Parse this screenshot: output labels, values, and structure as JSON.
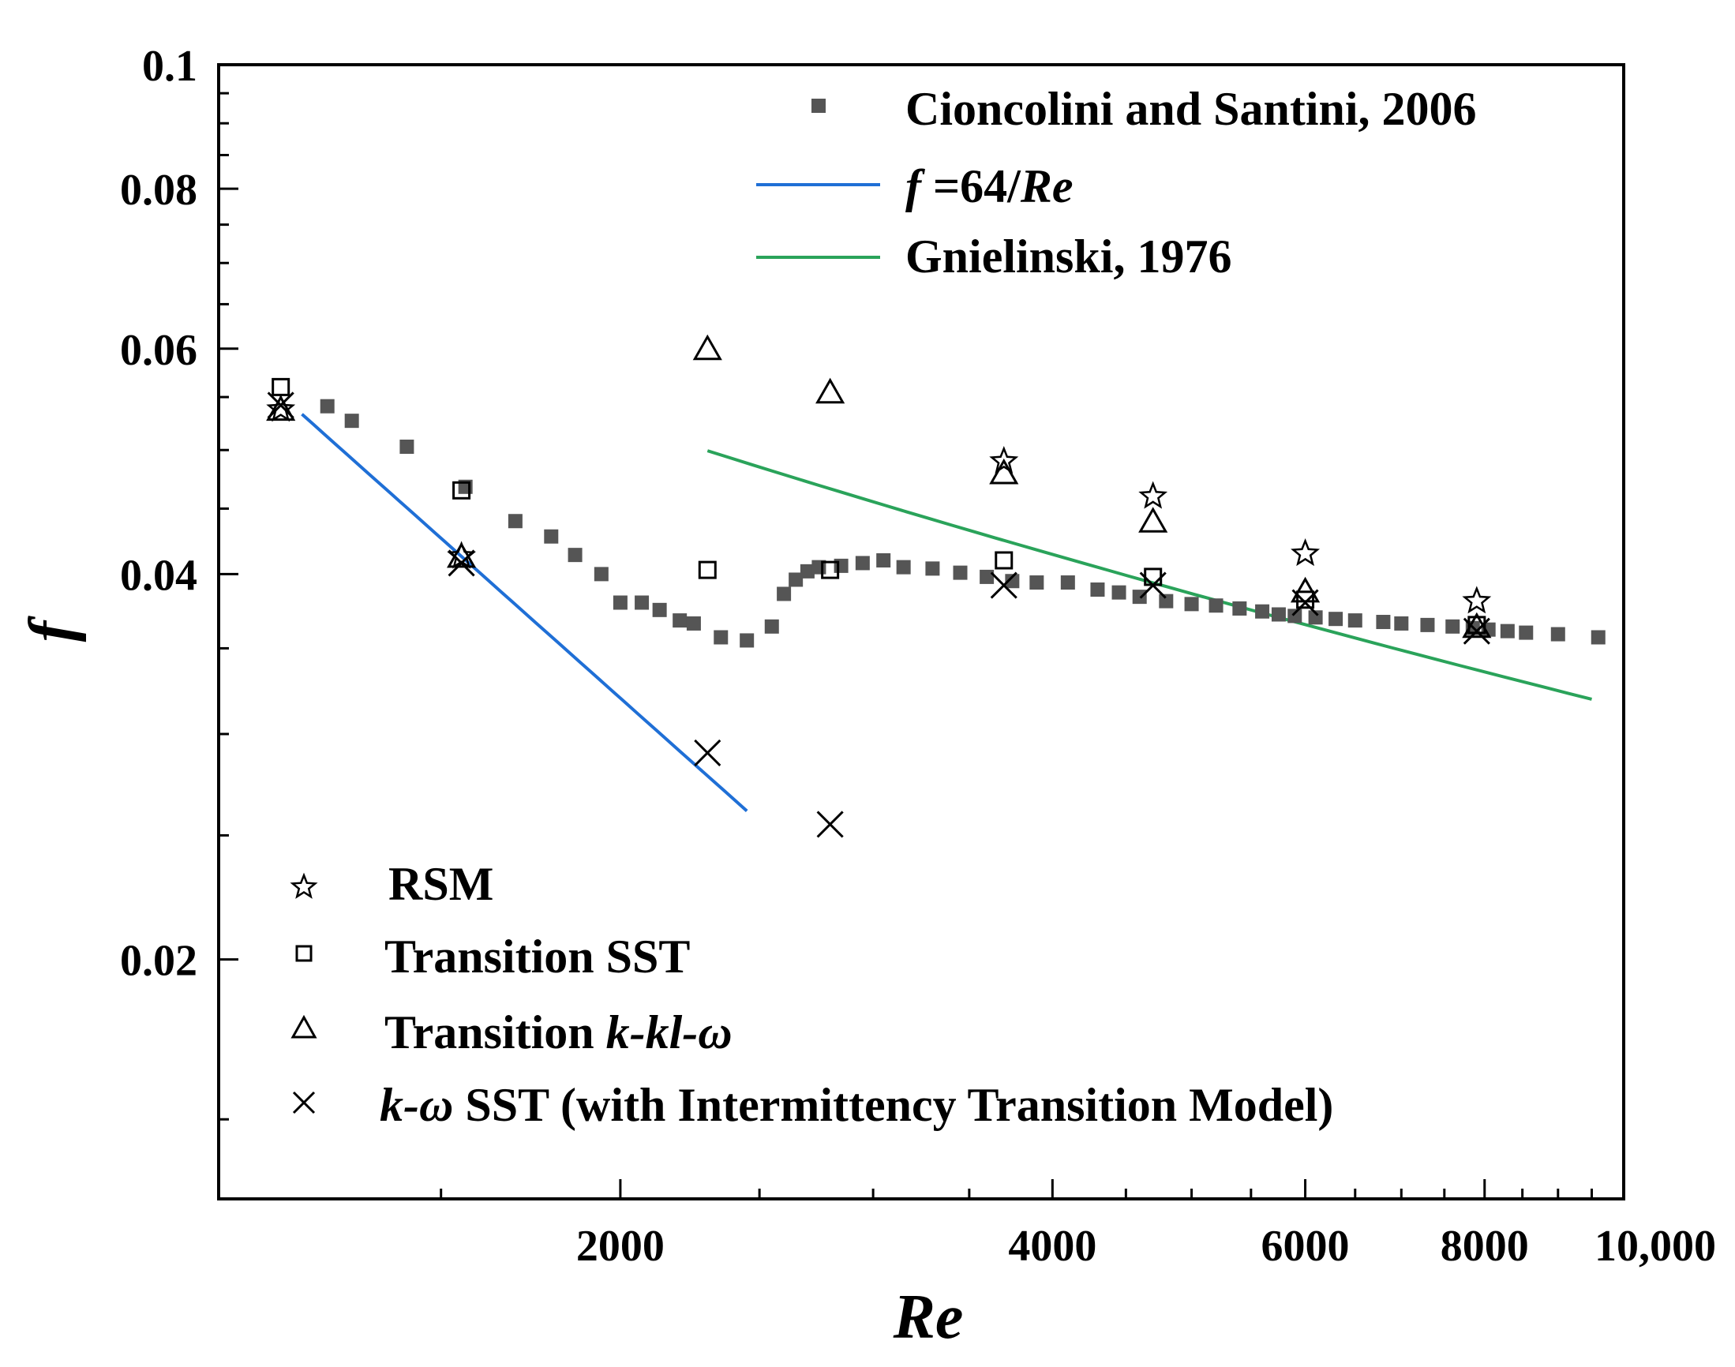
{
  "chart_data": {
    "type": "scatter",
    "x_scale": "log",
    "y_scale": "log",
    "xlabel": "Re",
    "ylabel": "f",
    "xlim": [
      1050,
      10000
    ],
    "ylim": [
      0.013,
      0.1
    ],
    "x_ticks": [
      {
        "value": 2000,
        "label": "2000"
      },
      {
        "value": 4000,
        "label": "4000"
      },
      {
        "value": 6000,
        "label": "6000"
      },
      {
        "value": 8000,
        "label": "8000"
      },
      {
        "value": 10000,
        "label": "10,000"
      }
    ],
    "y_ticks": [
      {
        "value": 0.02,
        "label": "0.02"
      },
      {
        "value": 0.04,
        "label": "0.04"
      },
      {
        "value": 0.06,
        "label": "0.06"
      },
      {
        "value": 0.08,
        "label": "0.08"
      },
      {
        "value": 0.1,
        "label": "0.1"
      }
    ],
    "x_minor_ticks": [
      1000,
      1500,
      2500,
      3000,
      3500,
      4500,
      5000,
      5500,
      6500,
      7000,
      7500,
      8500,
      9000,
      9500
    ],
    "y_minor_ticks": [
      0.015,
      0.025,
      0.03,
      0.035,
      0.045,
      0.05,
      0.055,
      0.065,
      0.07,
      0.075,
      0.085,
      0.09,
      0.095
    ],
    "lines": [
      {
        "name": "f=64/Re",
        "color": "#1f6fd6",
        "x_range": [
          1200,
          2450
        ]
      },
      {
        "name": "Gnielinski, 1976",
        "color": "#2aa35a",
        "x_range": [
          2300,
          9500
        ]
      }
    ],
    "series": [
      {
        "name": "Cioncolini and Santini, 2006",
        "marker": "filled-square",
        "color": "#555555",
        "x": [
          1250,
          1300,
          1420,
          1560,
          1690,
          1790,
          1860,
          1940,
          2000,
          2070,
          2130,
          2200,
          2250,
          2350,
          2450,
          2550,
          2600,
          2650,
          2700,
          2750,
          2850,
          2950,
          3050,
          3150,
          3300,
          3450,
          3600,
          3750,
          3900,
          4100,
          4300,
          4450,
          4600,
          4800,
          5000,
          5200,
          5400,
          5600,
          5750,
          5900,
          6100,
          6300,
          6500,
          6800,
          7000,
          7300,
          7600,
          7850,
          8050,
          8300,
          8550,
          9000,
          9600
        ],
        "y": [
          0.0541,
          0.0527,
          0.0503,
          0.0468,
          0.044,
          0.0428,
          0.0414,
          0.04,
          0.038,
          0.038,
          0.0375,
          0.0368,
          0.0366,
          0.0357,
          0.0355,
          0.0364,
          0.0386,
          0.0396,
          0.0402,
          0.0405,
          0.0406,
          0.0408,
          0.041,
          0.0405,
          0.0404,
          0.0401,
          0.0398,
          0.0395,
          0.0394,
          0.0394,
          0.0389,
          0.0387,
          0.0384,
          0.0381,
          0.0379,
          0.0378,
          0.0376,
          0.0374,
          0.0372,
          0.0371,
          0.037,
          0.0369,
          0.0368,
          0.0367,
          0.0366,
          0.0365,
          0.0364,
          0.0363,
          0.0362,
          0.0361,
          0.036,
          0.0359,
          0.0357
        ]
      },
      {
        "name": "RSM",
        "marker": "open-star",
        "color": "#000000",
        "x": [
          1160,
          1550,
          3700,
          4700,
          6000,
          7900
        ],
        "y": [
          0.0538,
          0.0413,
          0.049,
          0.046,
          0.0415,
          0.0381
        ]
      },
      {
        "name": "Transition SST",
        "marker": "open-square",
        "color": "#000000",
        "x": [
          1160,
          1550,
          2300,
          2800,
          3700,
          4700,
          6000,
          7900
        ],
        "y": [
          0.056,
          0.0465,
          0.0403,
          0.0403,
          0.041,
          0.0398,
          0.0382,
          0.0365
        ]
      },
      {
        "name": "Transition k-kl-ω",
        "marker": "open-triangle",
        "color": "#000000",
        "x": [
          1160,
          1550,
          2300,
          2800,
          3700,
          4700,
          6000,
          7900
        ],
        "y": [
          0.0538,
          0.0413,
          0.06,
          0.0555,
          0.048,
          0.044,
          0.0388,
          0.0364
        ]
      },
      {
        "name": "k-ω SST (with Intermittency Transition Model)",
        "marker": "x",
        "color": "#000000",
        "x": [
          1160,
          1550,
          2300,
          2800,
          3700,
          4700,
          6000,
          7900
        ],
        "y": [
          0.0542,
          0.0408,
          0.029,
          0.0255,
          0.0392,
          0.0392,
          0.038,
          0.0361
        ]
      }
    ],
    "legend": {
      "top_right": [
        {
          "label": "Cioncolini and Santini, 2006",
          "symbol": "filled-square"
        },
        {
          "label": "f =64/Re",
          "label_parts": [
            "f",
            " =64/",
            "Re"
          ],
          "symbol": "blue-line"
        },
        {
          "label": "Gnielinski, 1976",
          "symbol": "green-line"
        }
      ],
      "bottom_left": [
        {
          "label": "RSM",
          "symbol": "open-star"
        },
        {
          "label": "Transition SST",
          "symbol": "open-square"
        },
        {
          "label": "Transition k-kl-ω",
          "label_parts": [
            "Transition ",
            "k-kl-ω"
          ],
          "symbol": "open-triangle"
        },
        {
          "label": "k-ω SST (with Intermittency Transition Model)",
          "label_parts": [
            "k-ω",
            " SST (with Intermittency Transition Model)"
          ],
          "symbol": "x"
        }
      ]
    }
  }
}
